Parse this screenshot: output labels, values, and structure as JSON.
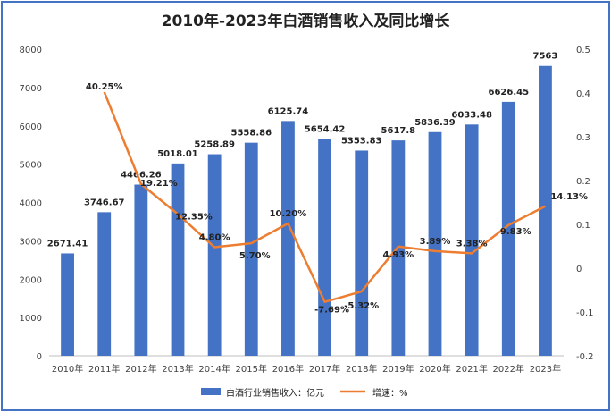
{
  "chart_data": {
    "type": "bar",
    "title": "2010年-2023年白酒销售收入及同比增长",
    "categories": [
      "2010年",
      "2011年",
      "2012年",
      "2013年",
      "2014年",
      "2015年",
      "2016年",
      "2017年",
      "2018年",
      "2019年",
      "2020年",
      "2021年",
      "2022年",
      "2023年"
    ],
    "series": [
      {
        "name": "白酒行业销售收入：亿元",
        "type": "bar",
        "axis": "left",
        "color": "#4472c4",
        "values": [
          2671.41,
          3746.67,
          4466.26,
          5018.01,
          5258.89,
          5558.86,
          6125.74,
          5654.42,
          5353.83,
          5617.8,
          5836.39,
          6033.48,
          6626.45,
          7563
        ],
        "labels": [
          "2671.41",
          "3746.67",
          "4466.26",
          "5018.01",
          "5258.89",
          "5558.86",
          "6125.74",
          "5654.42",
          "5353.83",
          "5617.8",
          "5836.39",
          "6033.48",
          "6626.45",
          "7563"
        ]
      },
      {
        "name": "增速：%",
        "type": "line",
        "axis": "right",
        "color": "#ed7d31",
        "values": [
          null,
          0.4025,
          0.1921,
          0.1235,
          0.048,
          0.057,
          0.102,
          -0.0769,
          -0.0532,
          0.0493,
          0.0389,
          0.0338,
          0.0983,
          0.1413
        ],
        "labels": [
          "",
          "40.25%",
          "19.21%",
          "12.35%",
          "4.80%",
          "5.70%",
          "10.20%",
          "-7.69%",
          "-5.32%",
          "4.93%",
          "3.89%",
          "3.38%",
          "9.83%",
          "14.13%"
        ]
      }
    ],
    "y_left": {
      "min": 0,
      "max": 8000,
      "ticks": [
        "0",
        "1000",
        "2000",
        "3000",
        "4000",
        "5000",
        "6000",
        "7000",
        "8000"
      ]
    },
    "y_right": {
      "min": -0.2,
      "max": 0.5,
      "ticks": [
        "-0.2",
        "-0.1",
        "0",
        "0.1",
        "0.2",
        "0.3",
        "0.4",
        "0.5"
      ]
    },
    "grid": false,
    "legend_position": "bottom"
  }
}
